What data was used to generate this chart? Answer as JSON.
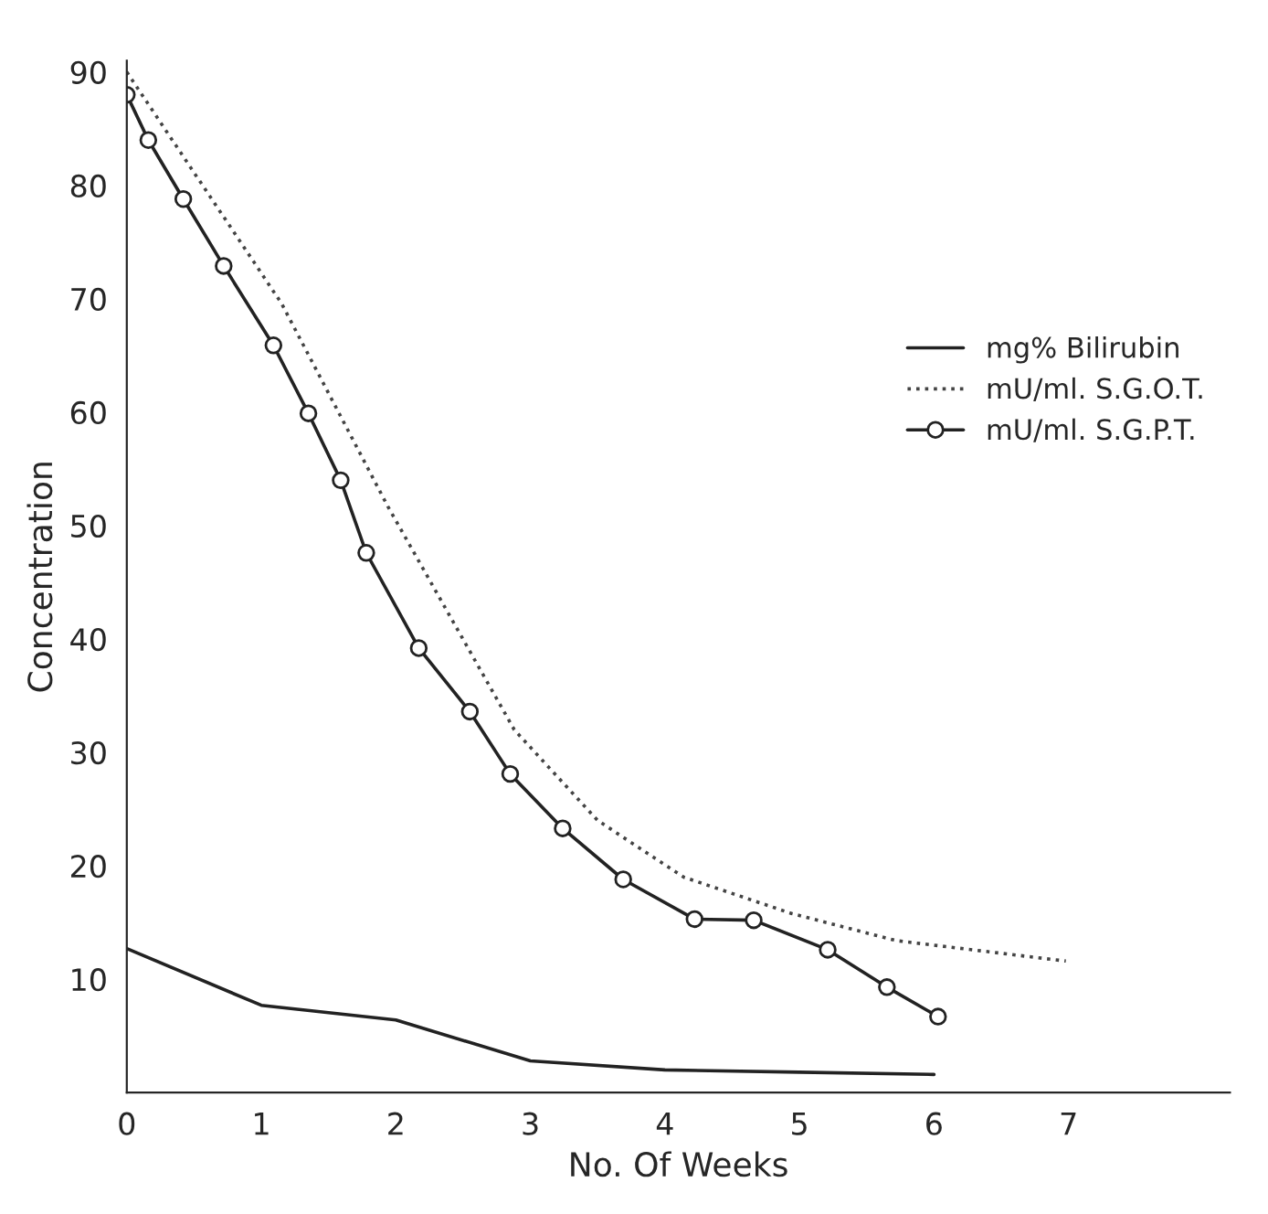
{
  "chart_data": {
    "type": "line",
    "xlabel": "No. Of Weeks",
    "ylabel": "Concentration",
    "xlim": [
      0,
      8.2
    ],
    "ylim": [
      0,
      91
    ],
    "xticks": [
      0,
      1,
      2,
      3,
      4,
      5,
      6,
      7
    ],
    "yticks": [
      10,
      20,
      30,
      40,
      50,
      60,
      70,
      80,
      90
    ],
    "grid": false,
    "legend": "right",
    "series": [
      {
        "name": "mg% Bilirubin",
        "color": "#222222",
        "line_style": "solid",
        "marker": "none",
        "x": [
          0,
          1,
          2,
          3,
          4,
          5,
          6
        ],
        "values": [
          12.7,
          7.7,
          6.4,
          2.8,
          2.0,
          1.8,
          1.6
        ]
      },
      {
        "name": "mU/ml. S.G.O.T.",
        "color": "#444444",
        "line_style": "dotted",
        "marker": "none",
        "x": [
          0,
          1.15,
          1.94,
          2.88,
          3.5,
          4.14,
          4.94,
          5.72,
          6.98
        ],
        "values": [
          90,
          69.6,
          51.7,
          32,
          24,
          19,
          15.8,
          13.4,
          11.6
        ]
      },
      {
        "name": "mU/ml. S.G.P.T.",
        "color": "#222222",
        "line_style": "solid",
        "marker": "circle",
        "x": [
          0,
          0.16,
          0.42,
          0.72,
          1.09,
          1.35,
          1.59,
          1.78,
          2.17,
          2.55,
          2.85,
          3.24,
          3.69,
          4.22,
          4.66,
          5.21,
          5.65,
          6.03
        ],
        "values": [
          88,
          84,
          78.8,
          72.9,
          65.9,
          59.9,
          54,
          47.6,
          39.2,
          33.6,
          28.1,
          23.3,
          18.8,
          15.3,
          15.2,
          12.6,
          9.3,
          6.7
        ]
      }
    ]
  }
}
